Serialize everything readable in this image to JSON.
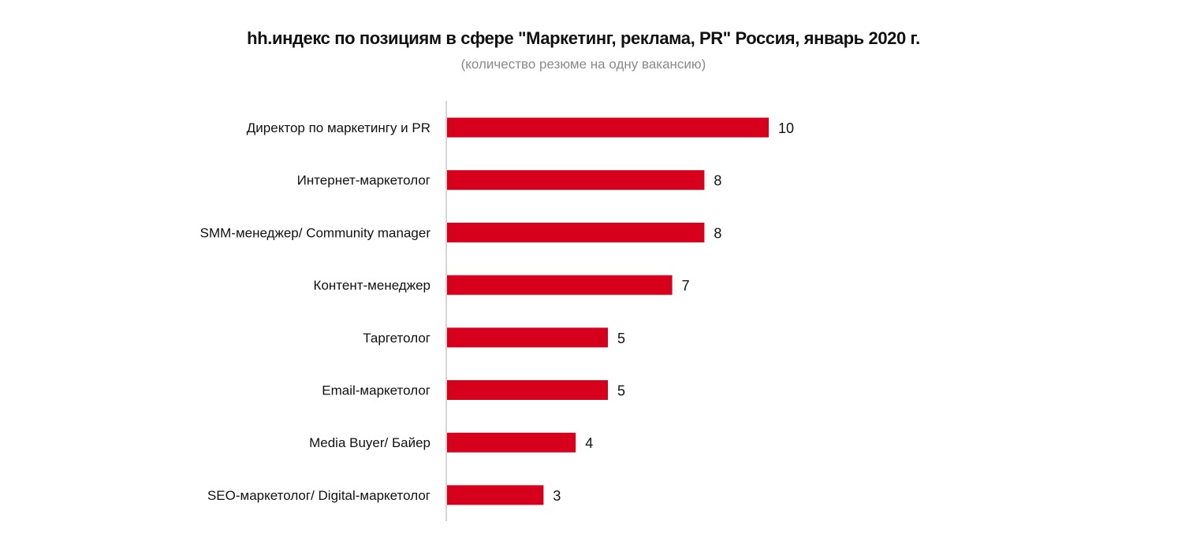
{
  "chart_data": {
    "type": "bar",
    "orientation": "horizontal",
    "title": "hh.индекс по позициям в сфере \"Маркетинг, реклама, PR\" Россия, январь 2020 г.",
    "subtitle": "(количество резюме на одну вакансию)",
    "categories": [
      "Директор по маркетингу и PR",
      "Интернет-маркетолог",
      "SMM-менеджер/ Community manager",
      "Контент-менеджер",
      "Таргетолог",
      "Email-маркетолог",
      "Media Buyer/ Байер",
      "SEO-маркетолог/ Digital-маркетолог"
    ],
    "values": [
      10,
      8,
      8,
      7,
      5,
      5,
      4,
      3
    ],
    "data_labels": [
      "10",
      "8",
      "8",
      "7",
      "5",
      "5",
      "4",
      "3"
    ],
    "xlim": [
      0,
      10
    ],
    "grid": false,
    "legend": "none",
    "bar_color": "#d6001c",
    "axis_color": "#c8c8c8"
  }
}
